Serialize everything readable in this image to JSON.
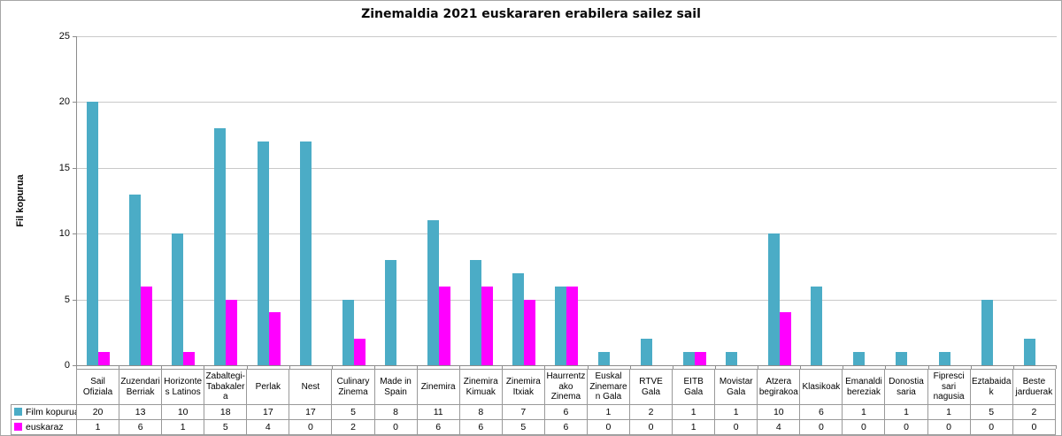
{
  "title": "Zinemaldia 2021 euskararen erabilera sailez sail",
  "chart_data": {
    "type": "bar",
    "title": "Zinemaldia 2021 euskararen erabilera sailez sail",
    "xlabel": "",
    "ylabel": "Fil kopurua",
    "ylim": [
      0,
      25
    ],
    "yticks": [
      0,
      5,
      10,
      15,
      20,
      25
    ],
    "grid": true,
    "legend_position": "table-left",
    "categories": [
      "Sail Ofiziala",
      "Zuzendari Berriak",
      "Horizontes Latinos",
      "Zabaltegi-Tabakalera",
      "Perlak",
      "Nest",
      "Culinary Zinema",
      "Made in Spain",
      "Zinemira",
      "Zinemira Kimuak",
      "Zinemira Itxiak",
      "Haurrentzako Zinema",
      "Euskal Zinemaren Gala",
      "RTVE Gala",
      "EITB Gala",
      "Movistar Gala",
      "Atzera begirakoa",
      "Klasikoak",
      "Emanaldi bereziak",
      "Donostia saria",
      "Fipresci sari nagusia",
      "Eztabaidak",
      "Beste jarduerak"
    ],
    "series": [
      {
        "name": "Film kopurua",
        "color": "#4BACC6",
        "values": [
          20,
          13,
          10,
          18,
          17,
          17,
          5,
          8,
          11,
          8,
          7,
          6,
          1,
          2,
          1,
          1,
          10,
          6,
          1,
          1,
          1,
          5,
          2
        ]
      },
      {
        "name": "euskaraz",
        "color": "#FF00FF",
        "values": [
          1,
          6,
          1,
          5,
          4,
          0,
          2,
          0,
          6,
          6,
          5,
          6,
          0,
          0,
          1,
          0,
          4,
          0,
          0,
          0,
          0,
          0,
          0
        ]
      }
    ]
  },
  "colors": {
    "bar_film_kopurua": "#4BACC6",
    "bar_euskaraz": "#FF00FF",
    "gridline": "#C9C9C9",
    "axis": "#8C8C8C",
    "table_border": "#999999",
    "outer_border": "#A6A6A6",
    "text": "#000000"
  }
}
